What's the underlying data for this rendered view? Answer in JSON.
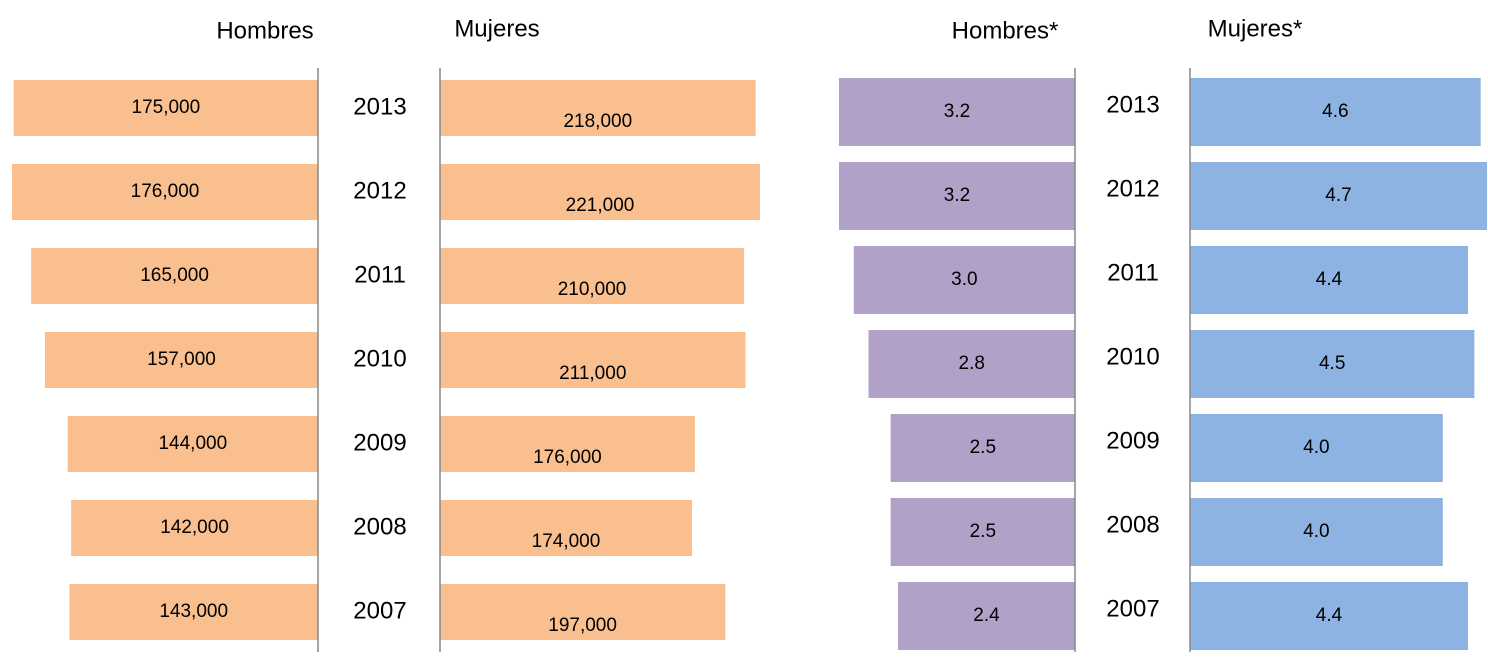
{
  "chart_data": [
    {
      "type": "bar",
      "categories": [
        "2013",
        "2012",
        "2011",
        "2010",
        "2009",
        "2008",
        "2007"
      ],
      "series": [
        {
          "name": "Hombres",
          "color": "#f9bf8f",
          "values": [
            175000,
            176000,
            165000,
            157000,
            144000,
            142000,
            143000
          ],
          "value_labels": [
            "175,000",
            "176,000",
            "165,000",
            "157,000",
            "144,000",
            "142,000",
            "143,000"
          ]
        },
        {
          "name": "Mujeres",
          "color": "#f9bf8f",
          "values": [
            218000,
            221000,
            210000,
            211000,
            176000,
            174000,
            197000
          ],
          "value_labels": [
            "218,000",
            "221,000",
            "210,000",
            "211,000",
            "176,000",
            "174,000",
            "197,000"
          ]
        }
      ]
    },
    {
      "type": "bar",
      "categories": [
        "2013",
        "2012",
        "2011",
        "2010",
        "2009",
        "2008",
        "2007"
      ],
      "series": [
        {
          "name": "Hombres*",
          "color": "#b1a0c7",
          "values": [
            3.2,
            3.2,
            3.0,
            2.8,
            2.5,
            2.5,
            2.4
          ],
          "value_labels": [
            "3.2",
            "3.2",
            "3.0",
            "2.8",
            "2.5",
            "2.5",
            "2.4"
          ]
        },
        {
          "name": "Mujeres*",
          "color": "#8db3e2",
          "values": [
            4.6,
            4.7,
            4.4,
            4.5,
            4.0,
            4.0,
            4.4
          ],
          "value_labels": [
            "4.6",
            "4.7",
            "4.4",
            "4.5",
            "4.0",
            "4.0",
            "4.4"
          ]
        }
      ]
    }
  ]
}
